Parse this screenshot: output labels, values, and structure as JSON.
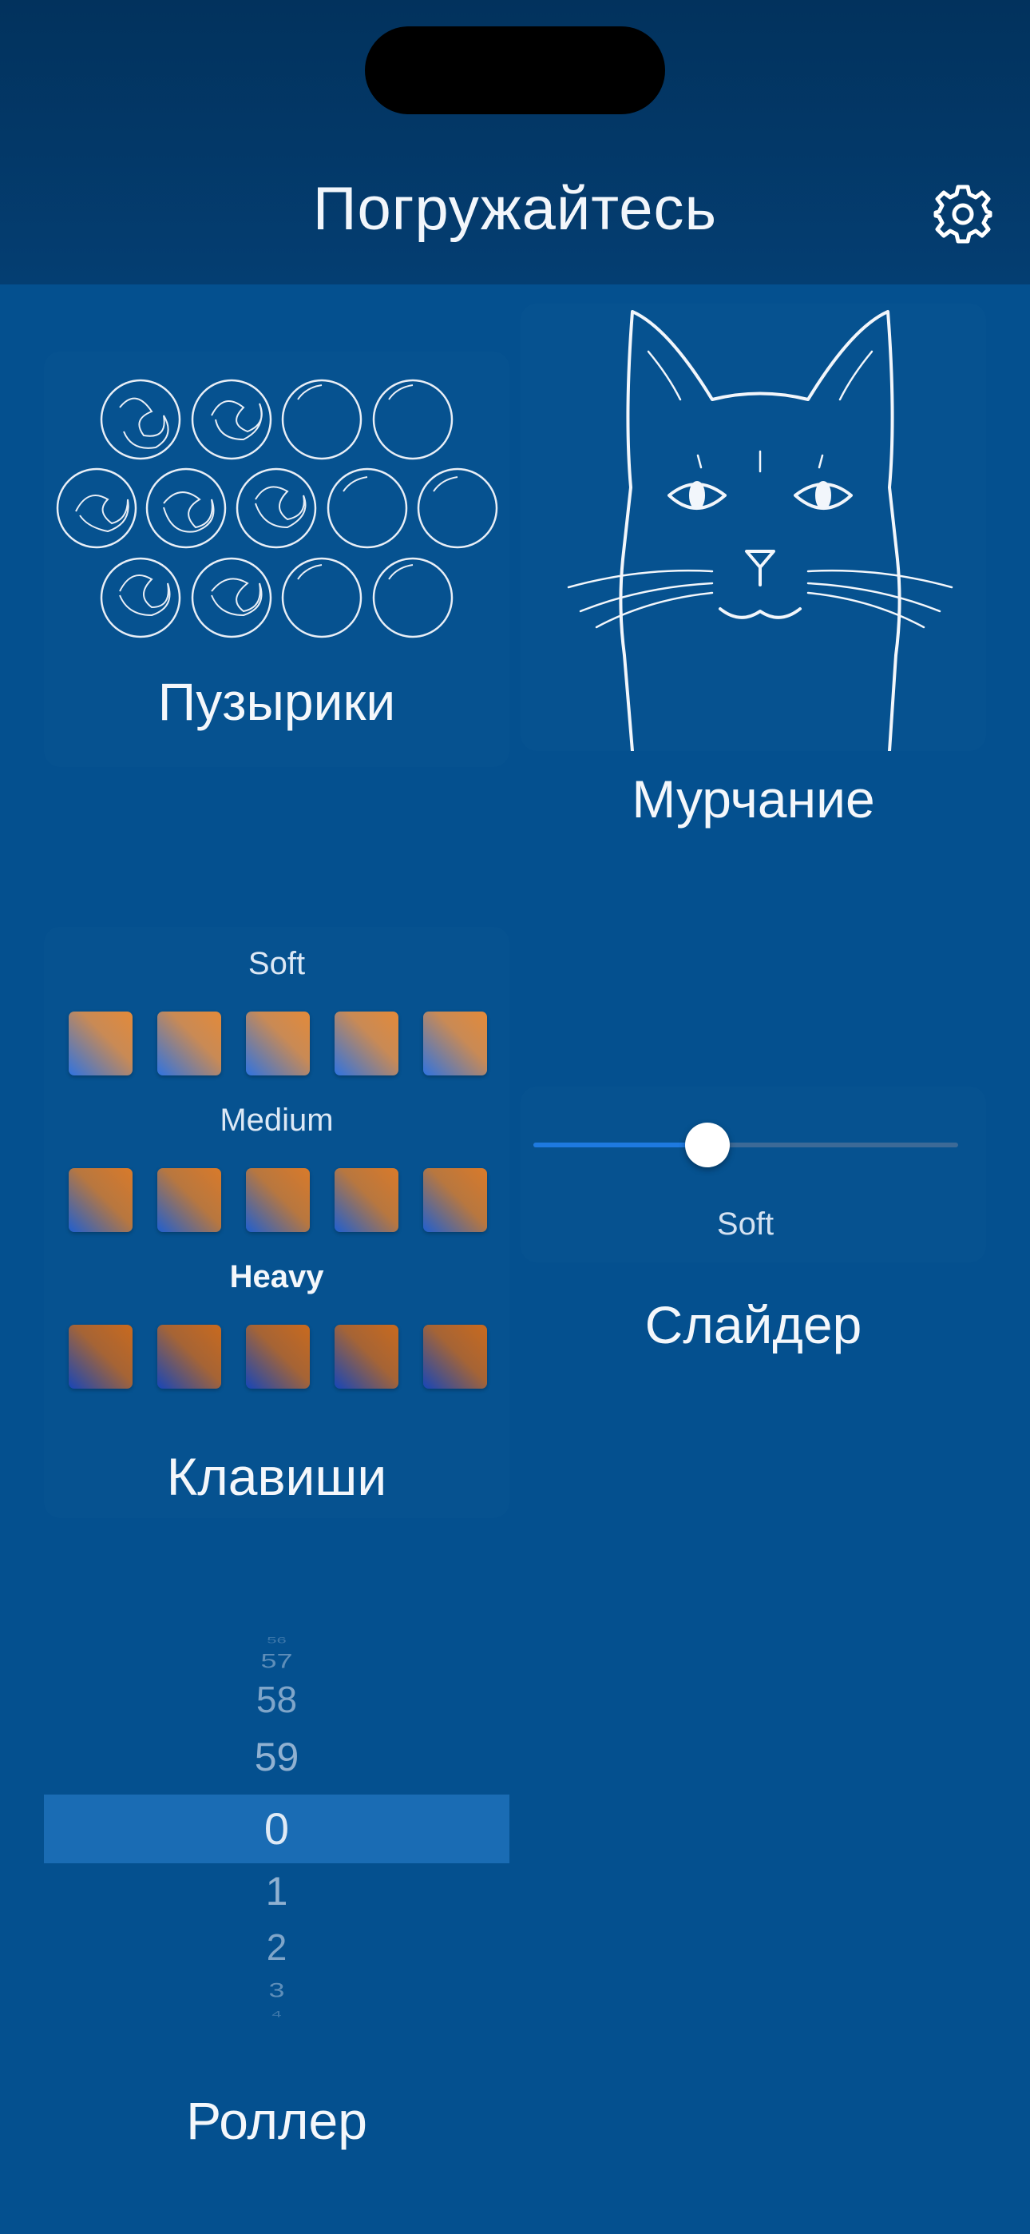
{
  "header": {
    "title": "Погружайтесь",
    "settings_icon": "gear-icon"
  },
  "tiles": {
    "bubbles": {
      "label": "Пузырики"
    },
    "purr": {
      "label": "Мурчание"
    },
    "keys": {
      "label": "Клавиши",
      "rows": [
        {
          "name": "Soft",
          "count": 5
        },
        {
          "name": "Medium",
          "count": 5
        },
        {
          "name": "Heavy",
          "count": 5
        }
      ]
    },
    "slider": {
      "label": "Слайдер",
      "value_text": "Soft",
      "value_fraction": 0.41
    },
    "roller": {
      "label": "Роллер",
      "above": [
        "56",
        "57",
        "58",
        "59"
      ],
      "selected": "0",
      "below": [
        "1",
        "2",
        "3",
        "4"
      ]
    }
  },
  "colors": {
    "background": "#04508f",
    "header": "#02325d",
    "key_orange": "#d9823a",
    "key_blue": "#1f66d6",
    "slider_fill": "#1e7ae0",
    "roller_highlight": "#1a6cb4"
  }
}
